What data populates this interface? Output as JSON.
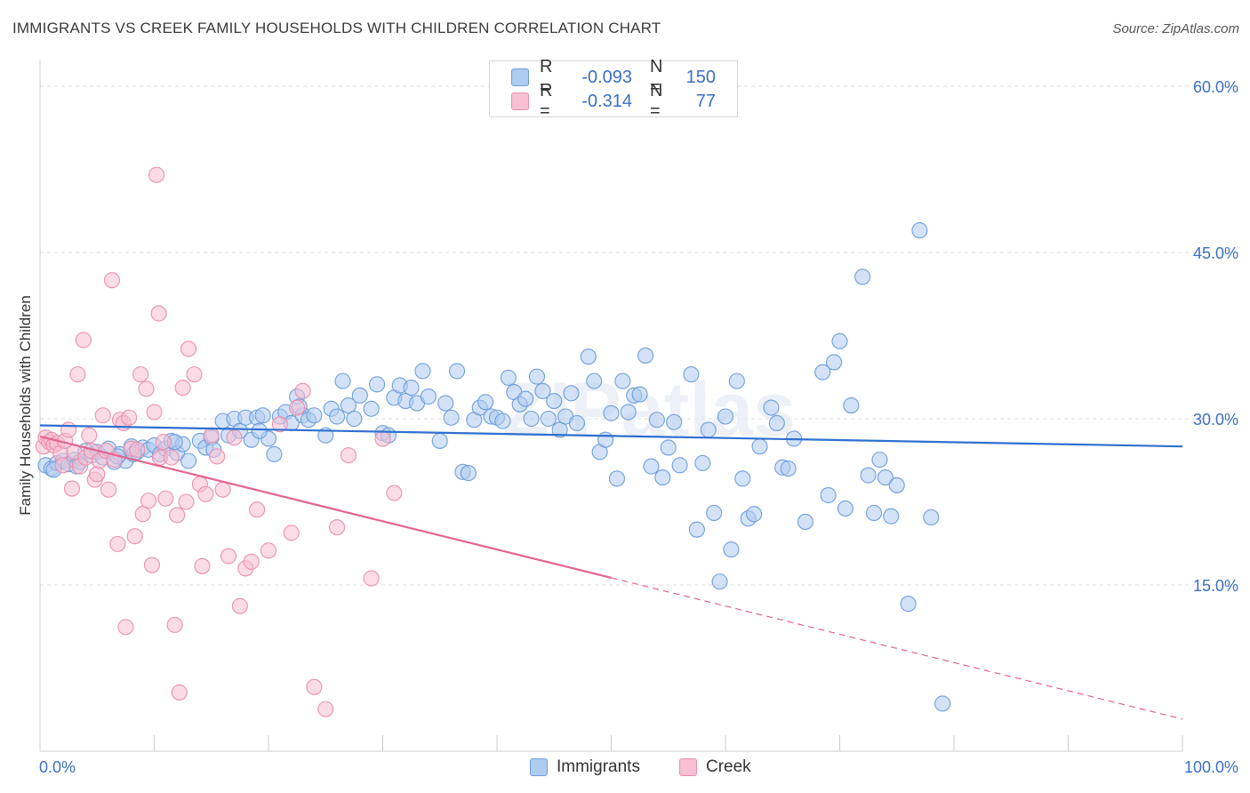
{
  "title": "IMMIGRANTS VS CREEK FAMILY HOUSEHOLDS WITH CHILDREN CORRELATION CHART",
  "source": "Source: ZipAtlas.com",
  "watermark": "ZIPatlas",
  "legend": {
    "rows": [
      {
        "r_label": "R =",
        "r_value": "-0.093",
        "n_label": "N =",
        "n_value": "150"
      },
      {
        "r_label": "R =",
        "r_value": "-0.314",
        "n_label": "N =",
        "n_value": "77"
      }
    ]
  },
  "bottom_legend": {
    "series1": "Immigrants",
    "series2": "Creek"
  },
  "colors": {
    "immigrants_fill": "#aecbf0",
    "immigrants_stroke": "#6f9fdc",
    "immigrants_line": "#2f6fd0",
    "creek_fill": "#f8c0d2",
    "creek_stroke": "#ec90ae",
    "creek_line": "#e4648f",
    "value_text": "#3b6fc4",
    "grid": "#dddddd"
  },
  "chart_data": {
    "type": "scatter",
    "title": "IMMIGRANTS VS CREEK FAMILY HOUSEHOLDS WITH CHILDREN CORRELATION CHART",
    "xlabel": "",
    "ylabel": "Family Households with Children",
    "xlim": [
      0,
      100
    ],
    "ylim": [
      0,
      60
    ],
    "x_tick_labels": [
      "0.0%",
      "100.0%"
    ],
    "y_ticks": [
      15,
      30,
      45,
      60
    ],
    "y_tick_labels": [
      "15.0%",
      "30.0%",
      "45.0%",
      "60.0%"
    ],
    "x_minor_ticks": [
      10,
      20,
      30,
      40,
      50,
      60,
      70,
      80,
      90,
      100
    ],
    "grid": true,
    "series": [
      {
        "name": "Immigrants",
        "r": -0.093,
        "n": 150,
        "trend": {
          "x0": 0,
          "y0": 29.4,
          "x1": 100,
          "y1": 27.5,
          "dashed_from": null
        },
        "points": [
          [
            0.5,
            25.8
          ],
          [
            1,
            25.5
          ],
          [
            1.5,
            26
          ],
          [
            2,
            26.2
          ],
          [
            2.5,
            25.9
          ],
          [
            3,
            26.3
          ],
          [
            3.5,
            26.1
          ],
          [
            4,
            27.1
          ],
          [
            4.5,
            26.7
          ],
          [
            5,
            27
          ],
          [
            5.5,
            26.5
          ],
          [
            6,
            27.3
          ],
          [
            6.5,
            26.1
          ],
          [
            7,
            26.8
          ],
          [
            7.5,
            26.2
          ],
          [
            8,
            27.5
          ],
          [
            8.5,
            27
          ],
          [
            9,
            27.4
          ],
          [
            9.5,
            27.2
          ],
          [
            10,
            27.6
          ],
          [
            10.5,
            26.8
          ],
          [
            11,
            27.3
          ],
          [
            11.5,
            28
          ],
          [
            12,
            26.9
          ],
          [
            12.5,
            27.7
          ],
          [
            13,
            26.2
          ],
          [
            14,
            28
          ],
          [
            14.5,
            27.4
          ],
          [
            15,
            28.3
          ],
          [
            16,
            29.8
          ],
          [
            16.5,
            28.5
          ],
          [
            17,
            30
          ],
          [
            17.5,
            28.9
          ],
          [
            18,
            30.1
          ],
          [
            18.5,
            28.1
          ],
          [
            19,
            30.1
          ],
          [
            19.5,
            30.3
          ],
          [
            20,
            28.2
          ],
          [
            20.5,
            26.8
          ],
          [
            21,
            30.2
          ],
          [
            21.5,
            30.6
          ],
          [
            22,
            29.6
          ],
          [
            22.5,
            32
          ],
          [
            23,
            30.3
          ],
          [
            23.5,
            29.9
          ],
          [
            24,
            30.3
          ],
          [
            25,
            28.5
          ],
          [
            25.5,
            30.9
          ],
          [
            26,
            30.2
          ],
          [
            26.5,
            33.4
          ],
          [
            27,
            31.2
          ],
          [
            27.5,
            30
          ],
          [
            28,
            32.1
          ],
          [
            29,
            30.9
          ],
          [
            29.5,
            33.1
          ],
          [
            30,
            28.7
          ],
          [
            30.5,
            28.5
          ],
          [
            31,
            31.9
          ],
          [
            31.5,
            33
          ],
          [
            32,
            31.6
          ],
          [
            32.5,
            32.8
          ],
          [
            33,
            31.4
          ],
          [
            33.5,
            34.3
          ],
          [
            34,
            32
          ],
          [
            35,
            28
          ],
          [
            35.5,
            31.4
          ],
          [
            36,
            30.1
          ],
          [
            36.5,
            34.3
          ],
          [
            37,
            25.2
          ],
          [
            37.5,
            25.1
          ],
          [
            38,
            29.9
          ],
          [
            38.5,
            31
          ],
          [
            39,
            31.5
          ],
          [
            39.5,
            30.2
          ],
          [
            40,
            30.1
          ],
          [
            40.5,
            29.8
          ],
          [
            41,
            33.7
          ],
          [
            41.5,
            32.4
          ],
          [
            42,
            31.3
          ],
          [
            42.5,
            31.8
          ],
          [
            43,
            30
          ],
          [
            43.5,
            33.8
          ],
          [
            44,
            32.5
          ],
          [
            44.5,
            30
          ],
          [
            45,
            31.6
          ],
          [
            45.5,
            29
          ],
          [
            46,
            30.2
          ],
          [
            46.5,
            32.3
          ],
          [
            47,
            29.6
          ],
          [
            48,
            35.6
          ],
          [
            48.5,
            33.4
          ],
          [
            49,
            27
          ],
          [
            49.5,
            28.1
          ],
          [
            50,
            30.5
          ],
          [
            50.5,
            24.6
          ],
          [
            51,
            33.4
          ],
          [
            51.5,
            30.6
          ],
          [
            52,
            32.1
          ],
          [
            52.5,
            32.2
          ],
          [
            53,
            35.7
          ],
          [
            53.5,
            25.7
          ],
          [
            54,
            29.9
          ],
          [
            54.5,
            24.7
          ],
          [
            55,
            27.4
          ],
          [
            55.5,
            29.7
          ],
          [
            56,
            25.8
          ],
          [
            57,
            34
          ],
          [
            57.5,
            20
          ],
          [
            58,
            26
          ],
          [
            58.5,
            29
          ],
          [
            59,
            21.5
          ],
          [
            59.5,
            15.3
          ],
          [
            60,
            30.2
          ],
          [
            60.5,
            18.2
          ],
          [
            61,
            33.4
          ],
          [
            61.5,
            24.6
          ],
          [
            62,
            21
          ],
          [
            62.5,
            21.4
          ],
          [
            63,
            27.5
          ],
          [
            64,
            31
          ],
          [
            64.5,
            29.6
          ],
          [
            65,
            25.6
          ],
          [
            65.5,
            25.5
          ],
          [
            66,
            28.2
          ],
          [
            67,
            20.7
          ],
          [
            68.5,
            34.2
          ],
          [
            69,
            23.1
          ],
          [
            69.5,
            35.1
          ],
          [
            70,
            37
          ],
          [
            70.5,
            21.9
          ],
          [
            71,
            31.2
          ],
          [
            72,
            42.8
          ],
          [
            72.5,
            24.9
          ],
          [
            73,
            21.5
          ],
          [
            73.5,
            26.3
          ],
          [
            74,
            24.7
          ],
          [
            74.5,
            21.2
          ],
          [
            75,
            24
          ],
          [
            76,
            13.3
          ],
          [
            77,
            47
          ],
          [
            78,
            21.1
          ],
          [
            79,
            4.3
          ],
          [
            1.2,
            25.4
          ],
          [
            3.2,
            25.7
          ],
          [
            6.8,
            26.6
          ],
          [
            8.2,
            26.8
          ],
          [
            11.8,
            27.9
          ],
          [
            15.2,
            27.2
          ],
          [
            19.2,
            28.9
          ],
          [
            22.7,
            31.1
          ]
        ]
      },
      {
        "name": "Creek",
        "r": -0.314,
        "n": 77,
        "trend": {
          "x0": 0,
          "y0": 28.4,
          "x1": 100,
          "y1": 2.9,
          "dashed_from": 50
        },
        "points": [
          [
            0.3,
            27.5
          ],
          [
            0.5,
            28.3
          ],
          [
            0.8,
            27.9
          ],
          [
            1,
            28.1
          ],
          [
            1.2,
            27.6
          ],
          [
            1.5,
            27.8
          ],
          [
            1.8,
            26.9
          ],
          [
            2,
            25.8
          ],
          [
            2.2,
            28
          ],
          [
            2.5,
            29
          ],
          [
            2.8,
            23.7
          ],
          [
            3,
            27
          ],
          [
            3.3,
            34
          ],
          [
            3.5,
            25.7
          ],
          [
            3.8,
            37.1
          ],
          [
            4,
            26.5
          ],
          [
            4.3,
            28.5
          ],
          [
            4.5,
            27.1
          ],
          [
            4.8,
            24.5
          ],
          [
            5,
            25
          ],
          [
            5.2,
            26.2
          ],
          [
            5.5,
            30.3
          ],
          [
            5.8,
            27.1
          ],
          [
            6,
            23.6
          ],
          [
            6.3,
            42.5
          ],
          [
            6.5,
            26.3
          ],
          [
            6.8,
            18.7
          ],
          [
            7,
            29.9
          ],
          [
            7.3,
            29.6
          ],
          [
            7.5,
            11.2
          ],
          [
            7.8,
            30.1
          ],
          [
            8,
            27.3
          ],
          [
            8.3,
            19.4
          ],
          [
            8.5,
            27.2
          ],
          [
            8.8,
            34
          ],
          [
            9,
            21.4
          ],
          [
            9.3,
            32.7
          ],
          [
            9.5,
            22.6
          ],
          [
            9.8,
            16.8
          ],
          [
            10,
            30.6
          ],
          [
            10.2,
            52
          ],
          [
            10.5,
            26.5
          ],
          [
            10.8,
            27.9
          ],
          [
            11,
            22.8
          ],
          [
            11.5,
            26.5
          ],
          [
            12,
            21.3
          ],
          [
            12.5,
            32.8
          ],
          [
            13,
            36.3
          ],
          [
            13.5,
            34
          ],
          [
            14,
            24.1
          ],
          [
            14.5,
            23.2
          ],
          [
            15,
            28.5
          ],
          [
            15.5,
            26.6
          ],
          [
            16,
            23.6
          ],
          [
            16.5,
            17.6
          ],
          [
            17,
            28.3
          ],
          [
            17.5,
            13.1
          ],
          [
            18,
            16.5
          ],
          [
            18.5,
            17.1
          ],
          [
            19,
            21.8
          ],
          [
            20,
            18.1
          ],
          [
            21,
            29.5
          ],
          [
            22,
            19.7
          ],
          [
            22.5,
            31
          ],
          [
            23,
            32.5
          ],
          [
            24,
            5.8
          ],
          [
            25,
            3.8
          ],
          [
            26,
            20.2
          ],
          [
            27,
            26.7
          ],
          [
            29,
            15.6
          ],
          [
            30,
            28.2
          ],
          [
            31,
            23.3
          ],
          [
            12.2,
            5.3
          ],
          [
            11.8,
            11.4
          ],
          [
            10.4,
            39.5
          ],
          [
            14.2,
            16.7
          ],
          [
            12.8,
            22.5
          ]
        ]
      }
    ]
  }
}
